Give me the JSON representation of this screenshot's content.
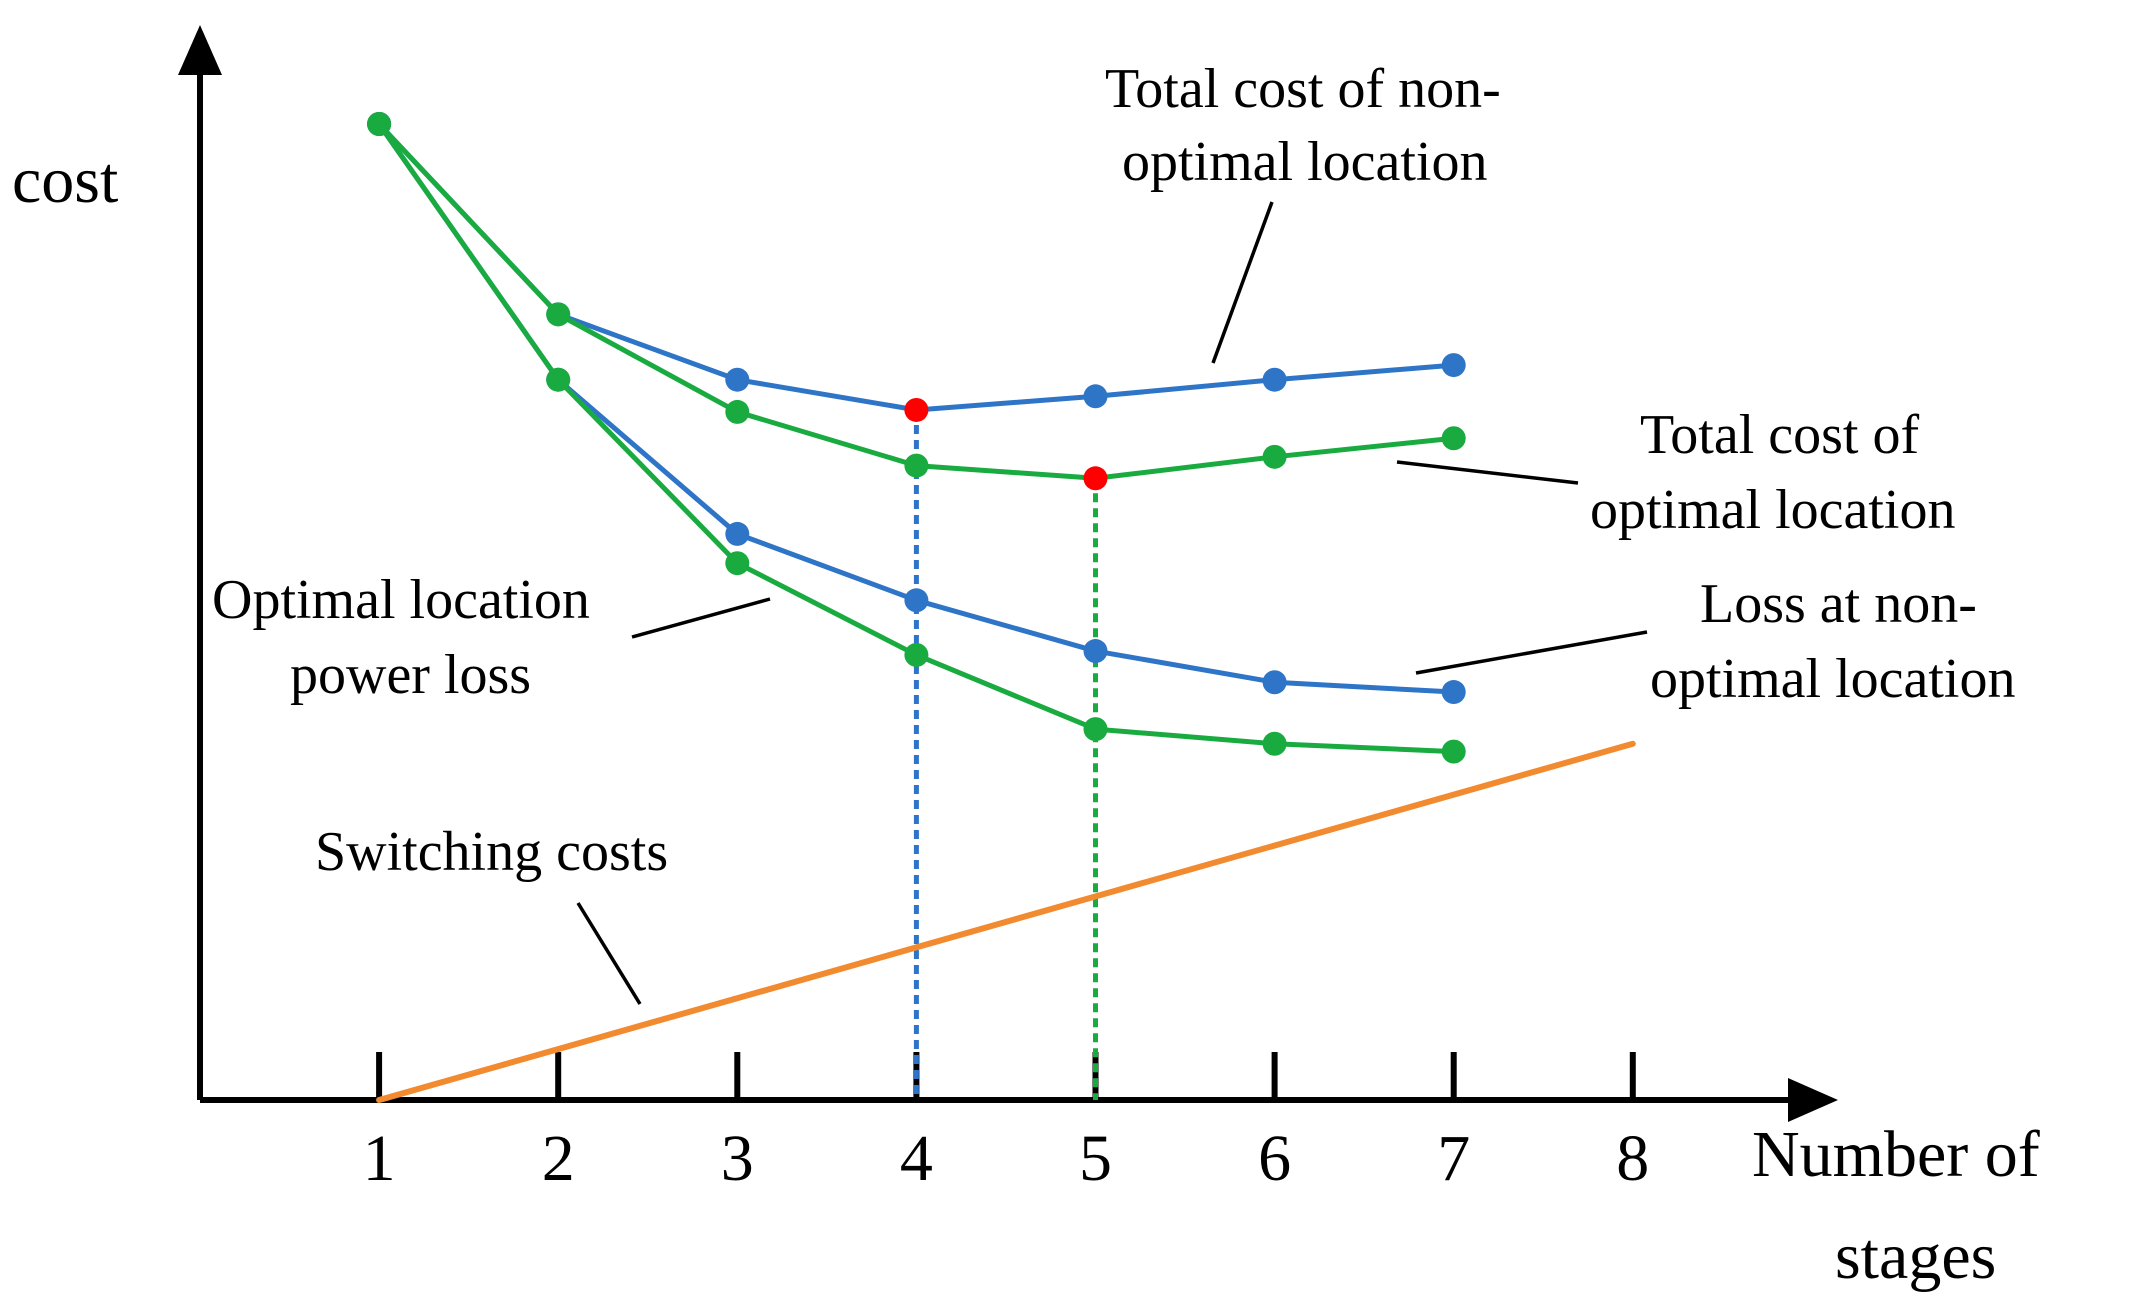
{
  "chart_data": {
    "type": "line",
    "ylabel": "cost",
    "xlabel_lines": [
      "Number of",
      "stages"
    ],
    "x_ticks": [
      "1",
      "2",
      "3",
      "4",
      "5",
      "6",
      "7",
      "8"
    ],
    "xlim": [
      0,
      8.9
    ],
    "ylim": [
      0,
      10.6
    ],
    "y_tick_labels": "none",
    "grid": false,
    "series": [
      {
        "key": "total_nonopt",
        "color": "#2e75c8",
        "x": [
          1,
          2,
          3,
          4,
          5,
          6,
          7
        ],
        "y": [
          10.0,
          8.05,
          7.38,
          7.07,
          7.21,
          7.38,
          7.53
        ],
        "min_index": 3
      },
      {
        "key": "total_opt",
        "color": "#1aab40",
        "x": [
          1,
          2,
          3,
          4,
          5,
          6,
          7
        ],
        "y": [
          10.0,
          8.05,
          7.05,
          6.5,
          6.37,
          6.59,
          6.78
        ],
        "min_index": 4
      },
      {
        "key": "loss_nonopt",
        "color": "#2e75c8",
        "x": [
          1,
          2,
          3,
          4,
          5,
          6,
          7
        ],
        "y": [
          10.0,
          7.38,
          5.8,
          5.12,
          4.6,
          4.28,
          4.18
        ]
      },
      {
        "key": "loss_opt",
        "color": "#1aab40",
        "x": [
          1,
          2,
          3,
          4,
          5,
          6,
          7
        ],
        "y": [
          10.0,
          7.38,
          5.5,
          4.56,
          3.8,
          3.65,
          3.57
        ]
      },
      {
        "key": "switching",
        "color": "#f28a30",
        "x": [
          1,
          8
        ],
        "y": [
          0,
          3.65
        ],
        "markers": false
      }
    ],
    "min_marker_color": "#ff0000",
    "guide_lines": [
      {
        "x": 4,
        "y": 7.07,
        "color": "#2e75c8"
      },
      {
        "x": 5,
        "y": 6.37,
        "color": "#1aab40"
      }
    ],
    "annotations": [
      {
        "key": "a_total_nonopt",
        "lines": [
          "Total cost of non-",
          "optimal location"
        ]
      },
      {
        "key": "a_total_opt",
        "lines": [
          "Total cost of",
          "optimal location"
        ]
      },
      {
        "key": "a_loss_nonopt",
        "lines": [
          "Loss at non-",
          "optimal location"
        ]
      },
      {
        "key": "a_loss_opt",
        "lines": [
          "Optimal location",
          "power loss"
        ]
      },
      {
        "key": "a_switching",
        "lines": [
          "Switching costs"
        ]
      }
    ]
  }
}
